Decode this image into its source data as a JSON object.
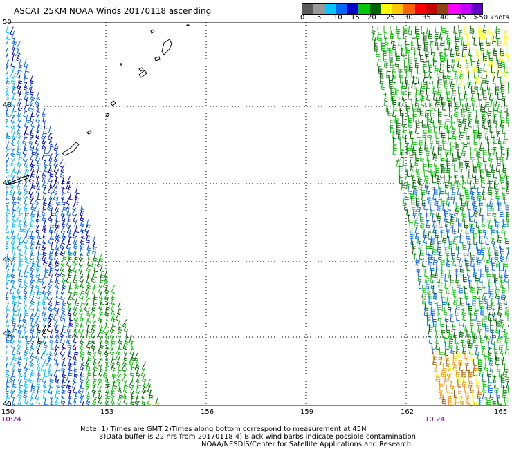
{
  "header": {
    "title": "ASCAT 25KM NOAA Winds 20170118 ascending"
  },
  "legend": {
    "colors": [
      "#5a5a5a",
      "#999999",
      "#00c8ff",
      "#0064ff",
      "#0000c8",
      "#00c800",
      "#006400",
      "#ffff00",
      "#ffc800",
      "#ff6400",
      "#ff0000",
      "#c80000",
      "#8b4513",
      "#ff00ff",
      "#c800ff",
      "#6400c8"
    ],
    "labels": [
      "0",
      "5",
      "10",
      "15",
      "20",
      "25",
      "30",
      "35",
      "40",
      "45",
      ">50 knots"
    ]
  },
  "map": {
    "lat_labels": [
      "50",
      "48",
      "46",
      "44",
      "42",
      "40"
    ],
    "lon_labels": [
      "150",
      "153",
      "156",
      "159",
      "162",
      "165"
    ],
    "left_time": "10:24",
    "right_time": "10:24"
  },
  "notes": {
    "line1": "Note: 1) Times are GMT 2)Times along bottom correspond to measurement at 45N",
    "line2": "3)Data buffer is 22 hrs from 20170118 4) Black wind barbs indicate possible contamination",
    "line3": "NOAA/NESDIS/Center for Satellite Applications and Research"
  }
}
